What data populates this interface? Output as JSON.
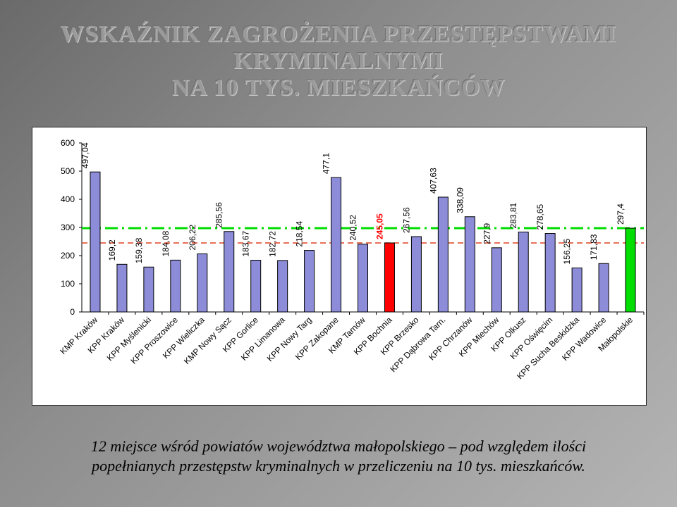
{
  "slide": {
    "title_lines": [
      "WSKAŹNIK ZAGROŻENIA PRZESTĘPSTWAMI",
      "KRYMINALNYMI",
      "NA 10 TYS. MIESZKAŃCÓW"
    ],
    "caption_lines": [
      "12 miejsce wśród powiatów województwa małopolskiego – pod względem ilości",
      "popełnianych przestępstw kryminalnych w przeliczeniu na 10 tys. mieszkańców."
    ]
  },
  "chart_data": {
    "type": "bar",
    "title": "",
    "xlabel": "",
    "ylabel": "",
    "ylim": [
      0,
      600
    ],
    "yticks": [
      0,
      100,
      200,
      300,
      400,
      500,
      600
    ],
    "categories": [
      "KMP Kraków",
      "KPP Kraków",
      "KPP Myślenicki",
      "KPP Proszowice",
      "KPP Wieliczka",
      "KMP Nowy Sącz",
      "KPP Gorlice",
      "KPP Limanowa",
      "KPP Nowy Targ",
      "KPP Zakopane",
      "KMP Tarnów",
      "KPP Bochnia",
      "KPP Brzesko",
      "KPP Dąbrowa Tarn.",
      "KPP Chrzanów",
      "KPP Miechów",
      "KPP Olkusz",
      "KPP Oświęcim",
      "KPP Sucha Beskidzka",
      "KPP Wadowice",
      "Małopolskie"
    ],
    "values": [
      497.04,
      169.2,
      159.38,
      184.08,
      206.22,
      285.56,
      183.67,
      182.72,
      218.54,
      477.1,
      240.52,
      245.05,
      267.56,
      407.63,
      338.09,
      227.9,
      283.81,
      278.65,
      156.25,
      171.83,
      297.4
    ],
    "value_labels": [
      "497,04",
      "169,2",
      "159,38",
      "184,08",
      "206,22",
      "285,56",
      "183,67",
      "182,72",
      "218,54",
      "477,1",
      "240,52",
      "245,05",
      "267,56",
      "407,63",
      "338,09",
      "227,9",
      "283,81",
      "278,65",
      "156,25",
      "171,83",
      "297,4"
    ],
    "highlight": {
      "KPP Bochnia": "#ff0000",
      "Małopolskie": "#00dd00"
    },
    "reference_lines": [
      {
        "value": 297.4,
        "color": "#00dd00",
        "style": "dashed"
      },
      {
        "value": 245.05,
        "color": "#e04020",
        "style": "dashed"
      }
    ],
    "grid": true,
    "colors": {
      "bar": "#8c8cd8",
      "bar_stroke": "#000000"
    }
  }
}
